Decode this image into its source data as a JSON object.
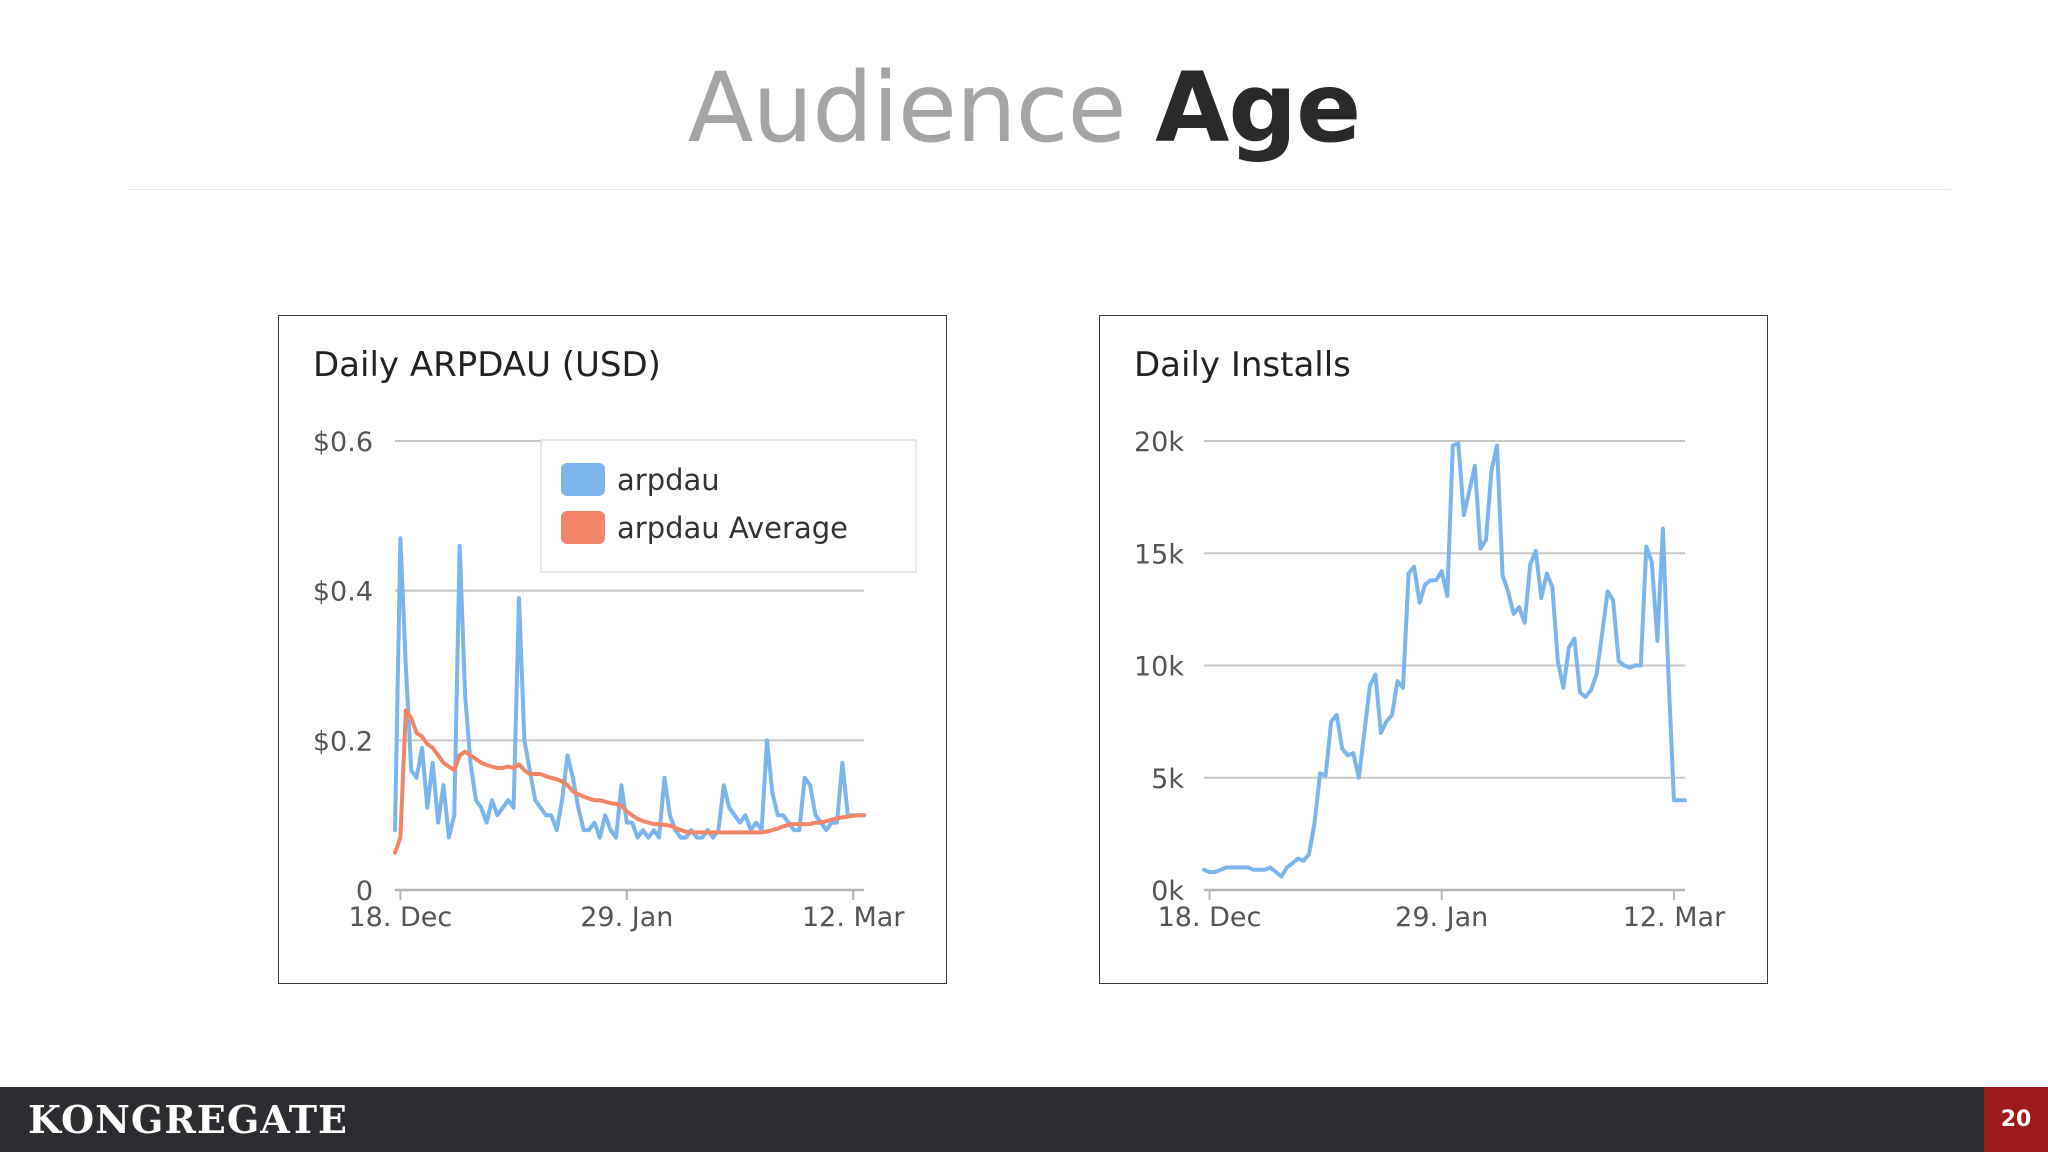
{
  "slide": {
    "title_light": "Audience",
    "title_bold": "Age",
    "page_number": "20",
    "logo_text": "KONGREGATE"
  },
  "chart_data": [
    {
      "type": "line",
      "title": "Daily ARPDAU (USD)",
      "x_tick_labels": [
        "18. Dec",
        "29. Jan",
        "12. Mar"
      ],
      "x_ticks": [
        0,
        42,
        84
      ],
      "y_tick_labels": [
        "0",
        "$0.2",
        "$0.4",
        "$0.6"
      ],
      "y_ticks": [
        0,
        0.2,
        0.4,
        0.6
      ],
      "ylim": [
        0,
        0.6
      ],
      "xlim": [
        -1,
        86
      ],
      "grid": true,
      "legend": "top-right",
      "series": [
        {
          "name": "arpdau",
          "color": "#7cb5ec",
          "x": [
            -1,
            0,
            1,
            2,
            3,
            4,
            5,
            6,
            7,
            8,
            9,
            10,
            11,
            12,
            13,
            14,
            15,
            16,
            17,
            18,
            19,
            20,
            21,
            22,
            23,
            24,
            25,
            26,
            27,
            28,
            29,
            30,
            31,
            32,
            33,
            34,
            35,
            36,
            37,
            38,
            39,
            40,
            41,
            42,
            43,
            44,
            45,
            46,
            47,
            48,
            49,
            50,
            51,
            52,
            53,
            54,
            55,
            56,
            57,
            58,
            59,
            60,
            61,
            62,
            63,
            64,
            65,
            66,
            67,
            68,
            69,
            70,
            71,
            72,
            73,
            74,
            75,
            76,
            77,
            78,
            79,
            80,
            81,
            82,
            83,
            84,
            85,
            86
          ],
          "y": [
            0.08,
            0.47,
            0.3,
            0.16,
            0.15,
            0.19,
            0.11,
            0.17,
            0.09,
            0.14,
            0.07,
            0.1,
            0.46,
            0.26,
            0.17,
            0.12,
            0.11,
            0.09,
            0.12,
            0.1,
            0.11,
            0.12,
            0.11,
            0.39,
            0.2,
            0.16,
            0.12,
            0.11,
            0.1,
            0.1,
            0.08,
            0.12,
            0.18,
            0.15,
            0.11,
            0.08,
            0.08,
            0.09,
            0.07,
            0.1,
            0.08,
            0.07,
            0.14,
            0.09,
            0.09,
            0.07,
            0.08,
            0.07,
            0.08,
            0.07,
            0.15,
            0.1,
            0.08,
            0.07,
            0.07,
            0.08,
            0.07,
            0.07,
            0.08,
            0.07,
            0.08,
            0.14,
            0.11,
            0.1,
            0.09,
            0.1,
            0.08,
            0.09,
            0.08,
            0.2,
            0.13,
            0.1,
            0.1,
            0.09,
            0.08,
            0.08,
            0.15,
            0.14,
            0.1,
            0.09,
            0.08,
            0.09,
            0.09,
            0.17,
            0.1,
            0.1,
            0.1,
            0.1
          ]
        },
        {
          "name": "arpdau Average",
          "color": "#f28567",
          "x": [
            -1,
            0,
            1,
            2,
            3,
            4,
            5,
            6,
            7,
            8,
            9,
            10,
            11,
            12,
            13,
            14,
            15,
            16,
            17,
            18,
            19,
            20,
            21,
            22,
            23,
            24,
            25,
            26,
            27,
            28,
            29,
            30,
            31,
            32,
            33,
            34,
            35,
            36,
            37,
            38,
            39,
            40,
            41,
            42,
            43,
            44,
            45,
            46,
            47,
            48,
            49,
            50,
            51,
            52,
            53,
            54,
            55,
            56,
            57,
            58,
            59,
            60,
            61,
            62,
            63,
            64,
            65,
            66,
            67,
            68,
            69,
            70,
            71,
            72,
            73,
            74,
            75,
            76,
            77,
            78,
            79,
            80,
            81,
            82,
            83,
            84,
            85,
            86
          ],
          "y": [
            0.05,
            0.07,
            0.24,
            0.23,
            0.21,
            0.205,
            0.195,
            0.19,
            0.18,
            0.17,
            0.165,
            0.16,
            0.18,
            0.185,
            0.18,
            0.175,
            0.17,
            0.167,
            0.165,
            0.163,
            0.163,
            0.165,
            0.163,
            0.168,
            0.16,
            0.155,
            0.155,
            0.155,
            0.152,
            0.15,
            0.148,
            0.145,
            0.14,
            0.132,
            0.128,
            0.125,
            0.122,
            0.12,
            0.12,
            0.118,
            0.116,
            0.115,
            0.113,
            0.105,
            0.1,
            0.095,
            0.092,
            0.09,
            0.088,
            0.088,
            0.087,
            0.086,
            0.083,
            0.08,
            0.078,
            0.077,
            0.077,
            0.077,
            0.077,
            0.077,
            0.077,
            0.077,
            0.077,
            0.077,
            0.077,
            0.077,
            0.077,
            0.077,
            0.077,
            0.078,
            0.08,
            0.082,
            0.085,
            0.087,
            0.088,
            0.088,
            0.088,
            0.088,
            0.09,
            0.09,
            0.092,
            0.094,
            0.096,
            0.097,
            0.098,
            0.099,
            0.1,
            0.1
          ]
        }
      ]
    },
    {
      "type": "line",
      "title": "Daily Installs",
      "x_tick_labels": [
        "18. Dec",
        "29. Jan",
        "12. Mar"
      ],
      "x_ticks": [
        0,
        42,
        84
      ],
      "y_tick_labels": [
        "0k",
        "5k",
        "10k",
        "15k",
        "20k"
      ],
      "y_ticks": [
        0,
        5000,
        10000,
        15000,
        20000
      ],
      "ylim": [
        0,
        20000
      ],
      "xlim": [
        -1,
        86
      ],
      "grid": true,
      "legend": "none",
      "series": [
        {
          "name": "",
          "color": "#7cb5ec",
          "x": [
            -1,
            0,
            1,
            2,
            3,
            4,
            5,
            6,
            7,
            8,
            9,
            10,
            11,
            12,
            13,
            14,
            15,
            16,
            17,
            18,
            19,
            20,
            21,
            22,
            23,
            24,
            25,
            26,
            27,
            28,
            29,
            30,
            31,
            32,
            33,
            34,
            35,
            36,
            37,
            38,
            39,
            40,
            41,
            42,
            43,
            44,
            45,
            46,
            47,
            48,
            49,
            50,
            51,
            52,
            53,
            54,
            55,
            56,
            57,
            58,
            59,
            60,
            61,
            62,
            63,
            64,
            65,
            66,
            67,
            68,
            69,
            70,
            71,
            72,
            73,
            74,
            75,
            76,
            77,
            78,
            79,
            80,
            81,
            82,
            83,
            84,
            85,
            86
          ],
          "y": [
            900,
            800,
            800,
            900,
            1000,
            1000,
            1000,
            1000,
            1000,
            900,
            900,
            900,
            1000,
            800,
            600,
            1000,
            1200,
            1400,
            1300,
            1600,
            3000,
            5200,
            5100,
            7500,
            7800,
            6300,
            6000,
            6100,
            5000,
            7000,
            9100,
            9600,
            7000,
            7500,
            7800,
            9300,
            9000,
            14100,
            14400,
            12800,
            13600,
            13800,
            13800,
            14200,
            13100,
            19800,
            19900,
            16700,
            17800,
            18900,
            15200,
            15600,
            18700,
            19800,
            14000,
            13300,
            12300,
            12600,
            11900,
            14500,
            15100,
            13000,
            14100,
            13500,
            10200,
            9000,
            10800,
            11200,
            8800,
            8600,
            8900,
            9600,
            11400,
            13300,
            12900,
            10200,
            10000,
            9900,
            10000,
            10000,
            15300,
            14600,
            11100,
            16100,
            9600,
            4000,
            4000,
            4000
          ]
        }
      ]
    }
  ]
}
